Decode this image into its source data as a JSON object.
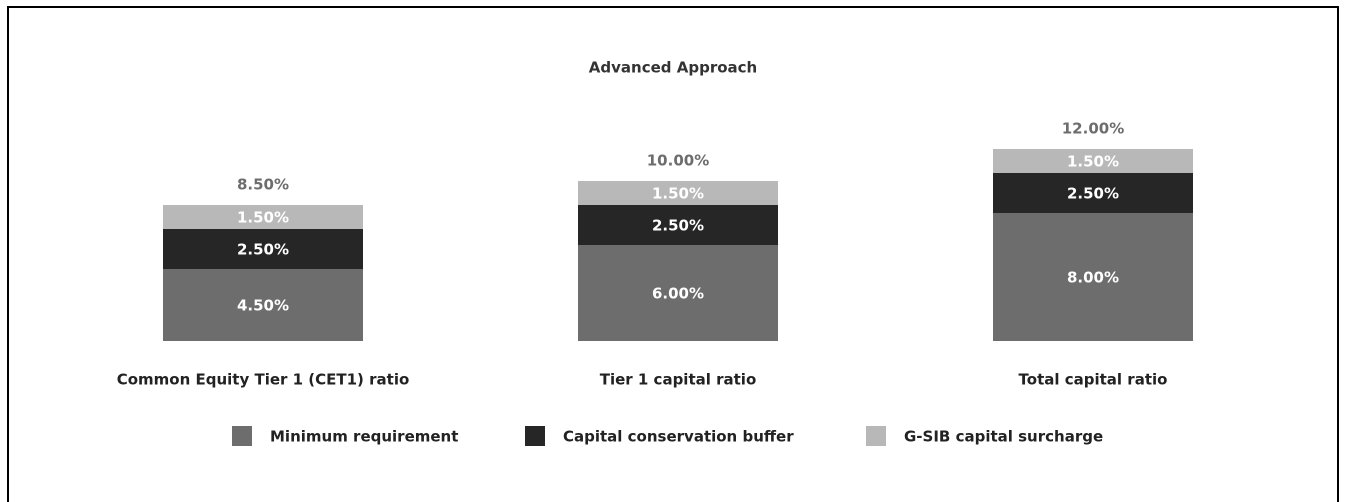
{
  "chart_data": {
    "type": "stacked-bar",
    "title": "Advanced Approach",
    "categories": [
      "Common Equity Tier 1 (CET1) ratio",
      "Tier 1 capital ratio",
      "Total capital ratio"
    ],
    "series": [
      {
        "name": "Minimum requirement",
        "color": "#6d6d6d",
        "values": [
          4.5,
          6,
          8
        ],
        "value_labels": [
          "4.50%",
          "6.00%",
          "8.00%"
        ]
      },
      {
        "name": "Capital conservation buffer",
        "color": "#262626",
        "values": [
          2.5,
          2.5,
          2.5
        ],
        "value_labels": [
          "2.50%",
          "2.50%",
          "2.50%"
        ]
      },
      {
        "name": "G-SIB capital surcharge",
        "color": "#b8b8b8",
        "values": [
          1.5,
          1.5,
          1.5
        ],
        "value_labels": [
          "1.50%",
          "1.50%",
          "1.50%"
        ]
      }
    ],
    "totals": {
      "values": [
        8.5,
        10,
        12
      ],
      "value_labels": [
        "8.50%",
        "10.00%",
        "12.00%"
      ],
      "color": "#6d6d6d"
    },
    "legend": "bottom"
  }
}
